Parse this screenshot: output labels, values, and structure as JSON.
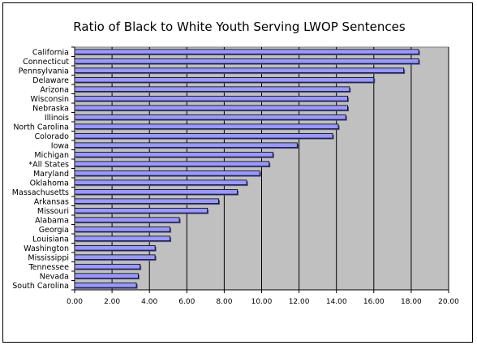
{
  "chart_data": {
    "type": "bar",
    "orientation": "horizontal",
    "title": "Ratio of Black to White Youth Serving LWOP Sentences",
    "xlabel": "",
    "ylabel": "",
    "xlim": [
      0,
      20
    ],
    "x_ticks": [
      "0.00",
      "2.00",
      "4.00",
      "6.00",
      "8.00",
      "10.00",
      "12.00",
      "14.00",
      "16.00",
      "18.00",
      "20.00"
    ],
    "categories": [
      "California",
      "Connecticut",
      "Pennsylvania",
      "Delaware",
      "Arizona",
      "Wisconsin",
      "Nebraska",
      "Illinois",
      "North Carolina",
      "Colorado",
      "Iowa",
      "Michigan",
      "*All States",
      "Maryland",
      "Oklahoma",
      "Massachusetts",
      "Arkansas",
      "Missouri",
      "Alabama",
      "Georgia",
      "Louisiana",
      "Washington",
      "Mississippi",
      "Tennessee",
      "Nevada",
      "South Carolina"
    ],
    "values": [
      18.4,
      18.4,
      17.6,
      16.0,
      14.7,
      14.6,
      14.6,
      14.5,
      14.1,
      13.8,
      11.9,
      10.6,
      10.4,
      9.9,
      9.2,
      8.7,
      7.7,
      7.1,
      5.6,
      5.1,
      5.1,
      4.3,
      4.3,
      3.5,
      3.4,
      3.3
    ],
    "grid": true,
    "colors": {
      "bar": "#9999ff",
      "plot_bg": "#c0c0c0",
      "grid": "#000000"
    }
  }
}
